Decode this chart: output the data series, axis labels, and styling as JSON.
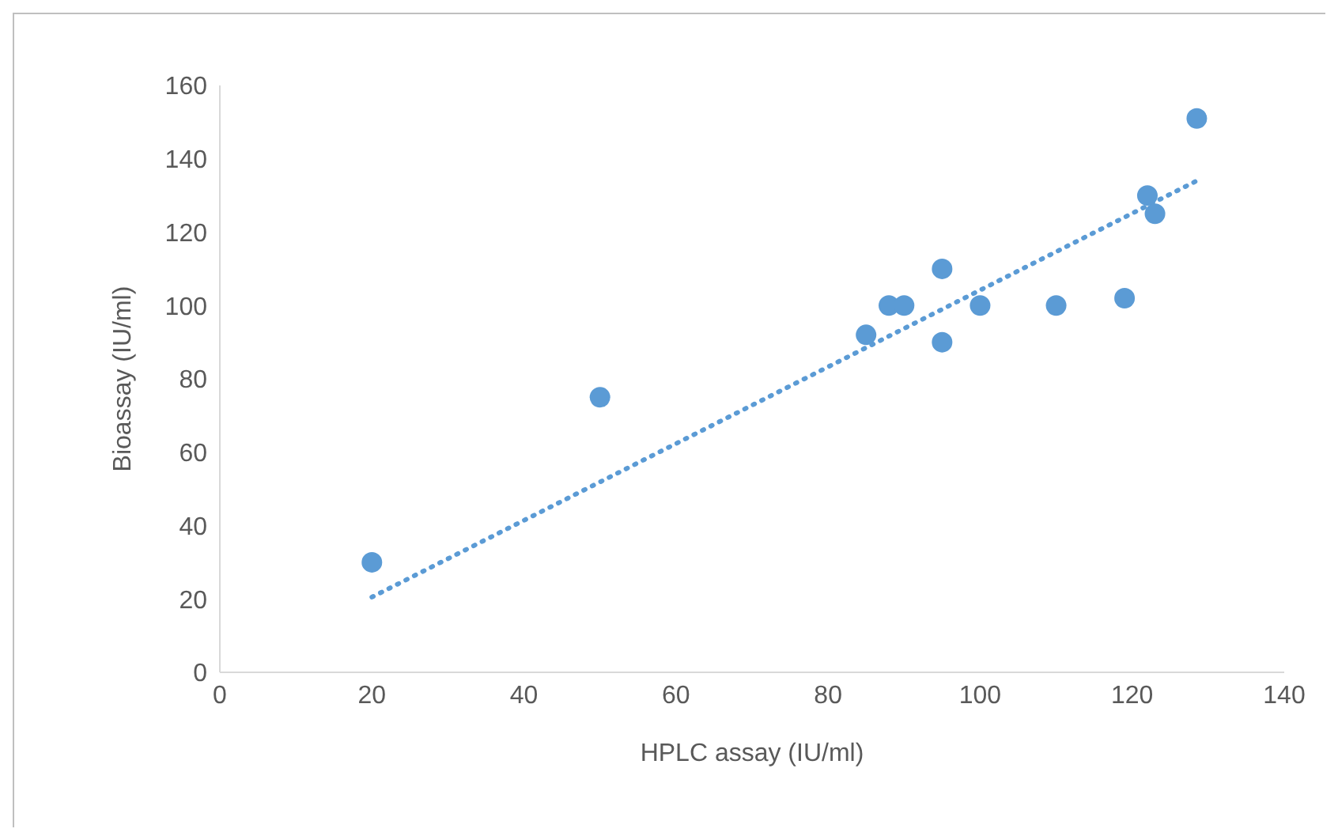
{
  "chart_data": {
    "type": "scatter",
    "xlabel": "HPLC assay (IU/ml)",
    "ylabel": "Bioassay (IU/ml)",
    "xlim": [
      0,
      140
    ],
    "xticks": [
      0,
      20,
      40,
      60,
      80,
      100,
      120,
      140
    ],
    "ylim": [
      0,
      160
    ],
    "yticks": [
      0,
      20,
      40,
      60,
      80,
      100,
      120,
      140,
      160
    ],
    "grid": false,
    "legend": false,
    "marker": "circle",
    "series": [
      {
        "color": "#5b9bd5",
        "x": [
          20,
          50,
          85,
          88,
          90,
          95,
          95,
          100,
          110,
          119,
          122,
          123,
          128.5
        ],
        "values": [
          30,
          75,
          92,
          100,
          100,
          110,
          90,
          100,
          100,
          102,
          130,
          125,
          151
        ]
      },
      {
        "type": "line",
        "color": "#5b9bd5",
        "line_style": "dotted",
        "marker": "none",
        "x": [
          20,
          128.5
        ],
        "values": [
          20.5,
          134
        ]
      }
    ]
  }
}
